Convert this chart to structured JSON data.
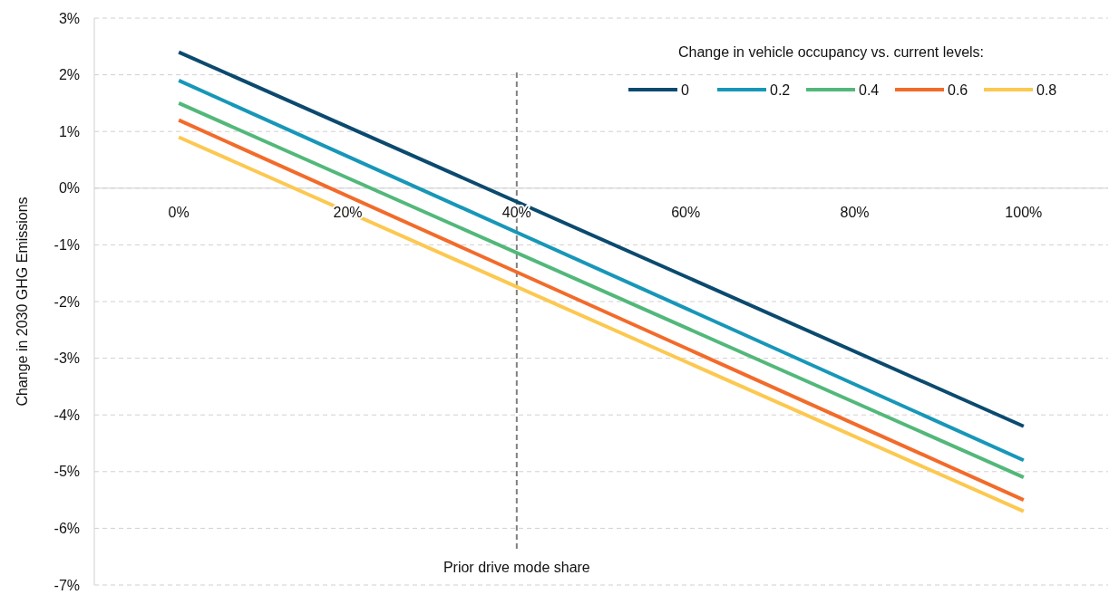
{
  "chart_data": {
    "type": "line",
    "ylabel": "Change in 2030 GHG Emissions",
    "legend_title": "Change in vehicle occupancy vs. current levels:",
    "legend": "top right",
    "grid": "y",
    "marker": "none",
    "line_style": "solid",
    "x": [
      0,
      100
    ],
    "xlim": [
      -10,
      110
    ],
    "xticks": [
      {
        "value": 0,
        "label": "0%"
      },
      {
        "value": 20,
        "label": "20%"
      },
      {
        "value": 40,
        "label": "40%"
      },
      {
        "value": 60,
        "label": "60%"
      },
      {
        "value": 80,
        "label": "80%"
      },
      {
        "value": 100,
        "label": "100%"
      }
    ],
    "ylim": [
      -7,
      3
    ],
    "yticks": [
      {
        "value": -7,
        "label": "-7%"
      },
      {
        "value": -6,
        "label": "-6%"
      },
      {
        "value": -5,
        "label": "-5%"
      },
      {
        "value": -4,
        "label": "-4%"
      },
      {
        "value": -3,
        "label": "-3%"
      },
      {
        "value": -2,
        "label": "-2%"
      },
      {
        "value": -1,
        "label": "-1%"
      },
      {
        "value": 0,
        "label": "0%"
      },
      {
        "value": 1,
        "label": "1%"
      },
      {
        "value": 2,
        "label": "2%"
      },
      {
        "value": 3,
        "label": "3%"
      }
    ],
    "series": [
      {
        "name": "0",
        "color": "#0b4a6f",
        "values": [
          2.4,
          -4.2
        ]
      },
      {
        "name": "0.2",
        "color": "#1797b8",
        "values": [
          1.9,
          -4.8
        ]
      },
      {
        "name": "0.4",
        "color": "#52b87a",
        "values": [
          1.5,
          -5.1
        ]
      },
      {
        "name": "0.6",
        "color": "#f26b2a",
        "values": [
          1.2,
          -5.5
        ]
      },
      {
        "name": "0.8",
        "color": "#fcc850",
        "values": [
          0.9,
          -5.7
        ]
      }
    ],
    "ref_lines": [
      {
        "axis": "x",
        "value": 40,
        "label": "Prior drive mode share",
        "color": "#808080",
        "line_style": "dashed"
      }
    ]
  }
}
